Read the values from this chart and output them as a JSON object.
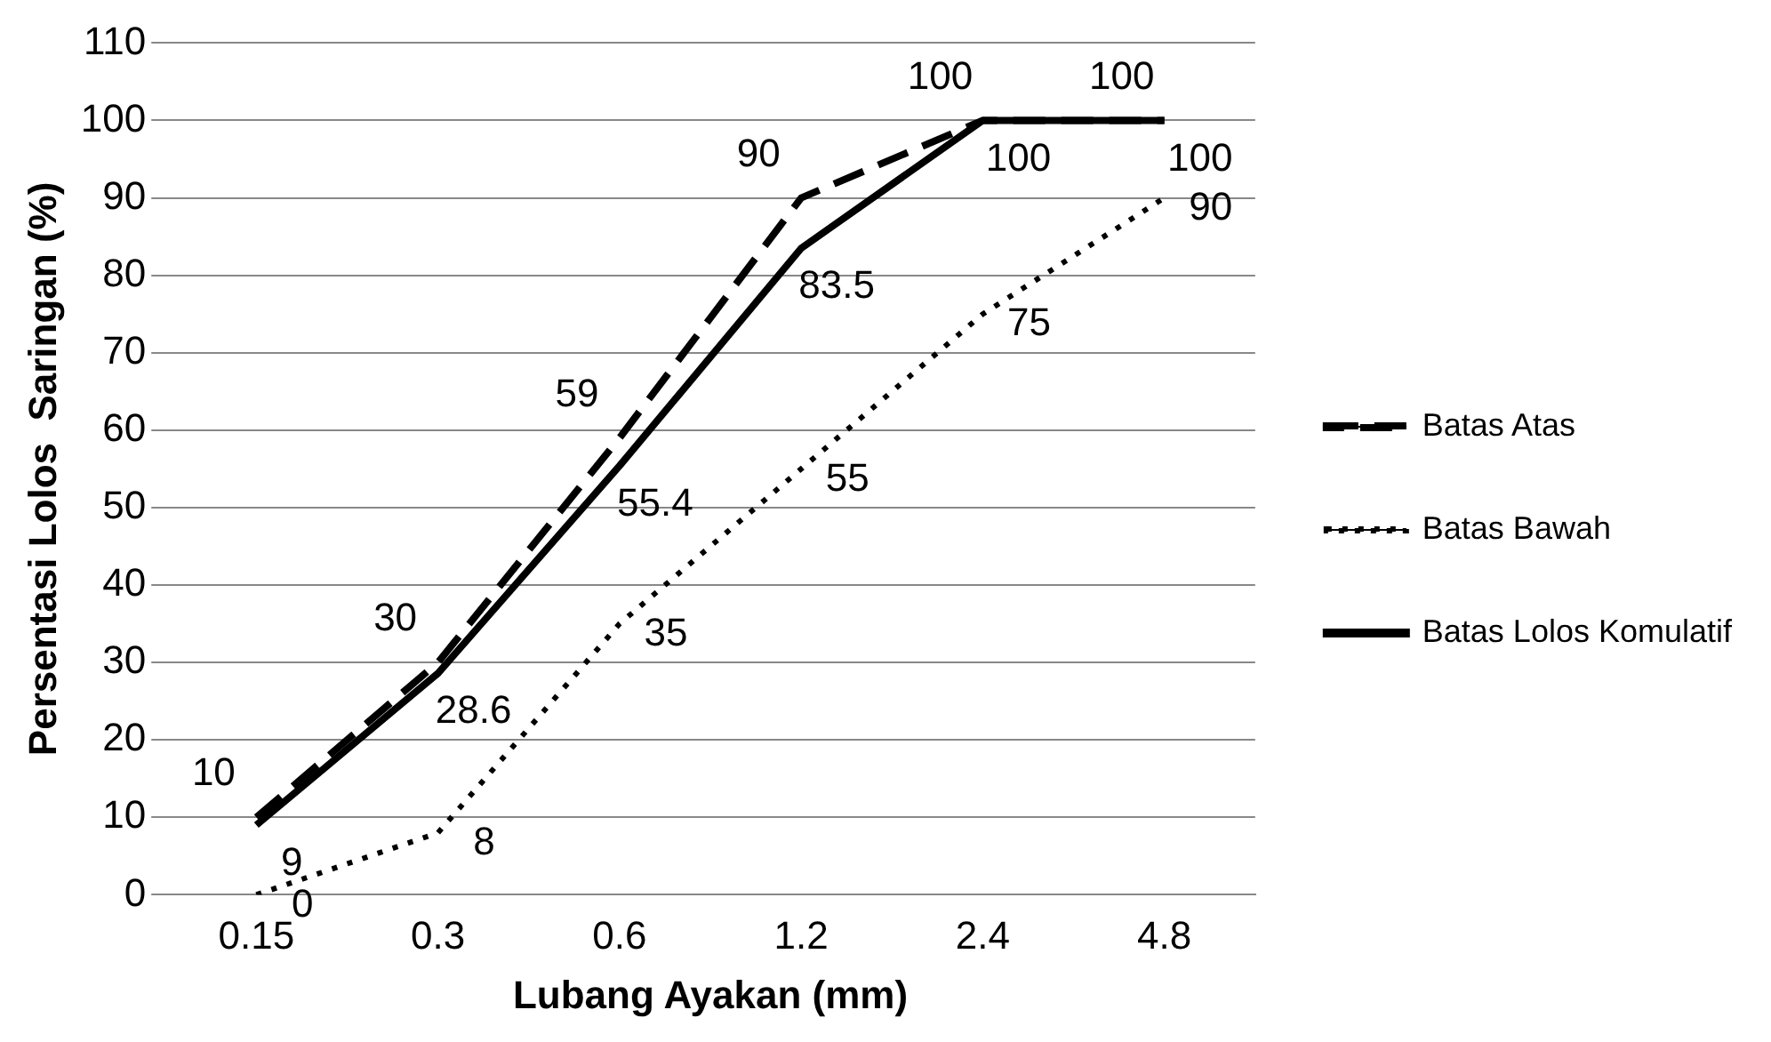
{
  "chart_data": {
    "type": "line",
    "xlabel": "Lubang Ayakan (mm)",
    "ylabel": "Persentasi Lolos  Saringan (%)",
    "categories": [
      "0.15",
      "0.3",
      "0.6",
      "1.2",
      "2.4",
      "4.8"
    ],
    "series": [
      {
        "name": "Batas Atas",
        "color": "#000000",
        "line_style": "dashed",
        "values": [
          10,
          30,
          59,
          90,
          100,
          100
        ]
      },
      {
        "name": "Batas Bawah",
        "color": "#000000",
        "line_style": "dotted",
        "values": [
          0,
          8,
          35,
          55,
          75,
          90
        ]
      },
      {
        "name": "Batas Lolos Komulatif",
        "color": "#000000",
        "line_style": "solid",
        "values": [
          9,
          28.6,
          55.4,
          83.5,
          100,
          100
        ]
      }
    ],
    "ylim": [
      0,
      110
    ],
    "yticks": [
      0,
      10,
      20,
      30,
      40,
      50,
      60,
      70,
      80,
      90,
      100,
      110
    ],
    "grid": "y",
    "legend": "right",
    "marker": "none",
    "data_labels": true
  }
}
